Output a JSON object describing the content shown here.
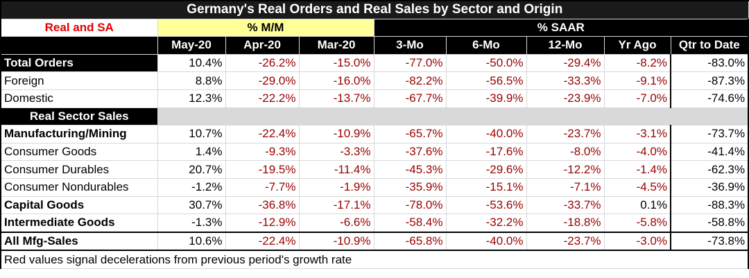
{
  "title": "Germany's Real Orders and Real Sales by Sector and Origin",
  "header": {
    "corner_label": "Real and SA",
    "group_mm": "% M/M",
    "group_saar": "% SAAR",
    "columns": [
      "May-20",
      "Apr-20",
      "Mar-20",
      "3-Mo",
      "6-Mo",
      "12-Mo",
      "Yr Ago",
      "Qtr to Date"
    ]
  },
  "rows": [
    {
      "label": "Total Orders",
      "values": [
        "10.4%",
        "-26.2%",
        "-15.0%",
        "-77.0%",
        "-50.0%",
        "-29.4%",
        "-8.2%",
        "-83.0%"
      ],
      "neg": [
        false,
        true,
        true,
        true,
        true,
        true,
        true,
        false
      ]
    },
    {
      "label": "Foreign",
      "values": [
        "8.8%",
        "-29.0%",
        "-16.0%",
        "-82.2%",
        "-56.5%",
        "-33.3%",
        "-9.1%",
        "-87.3%"
      ],
      "neg": [
        false,
        true,
        true,
        true,
        true,
        true,
        true,
        false
      ]
    },
    {
      "label": "Domestic",
      "values": [
        "12.3%",
        "-22.2%",
        "-13.7%",
        "-67.7%",
        "-39.9%",
        "-23.9%",
        "-7.0%",
        "-74.6%"
      ],
      "neg": [
        false,
        true,
        true,
        true,
        true,
        true,
        true,
        false
      ]
    },
    {
      "label": "Real Sector Sales",
      "values": []
    },
    {
      "label": "Manufacturing/Mining",
      "values": [
        "10.7%",
        "-22.4%",
        "-10.9%",
        "-65.7%",
        "-40.0%",
        "-23.7%",
        "-3.1%",
        "-73.7%"
      ],
      "neg": [
        false,
        true,
        true,
        true,
        true,
        true,
        true,
        false
      ]
    },
    {
      "label": "Consumer Goods",
      "values": [
        "1.4%",
        "-9.3%",
        "-3.3%",
        "-37.6%",
        "-17.6%",
        "-8.0%",
        "-4.0%",
        "-41.4%"
      ],
      "neg": [
        false,
        true,
        true,
        true,
        true,
        true,
        true,
        false
      ]
    },
    {
      "label": "Consumer Durables",
      "values": [
        "20.7%",
        "-19.5%",
        "-11.4%",
        "-45.3%",
        "-29.6%",
        "-12.2%",
        "-1.4%",
        "-62.3%"
      ],
      "neg": [
        false,
        true,
        true,
        true,
        true,
        true,
        true,
        false
      ]
    },
    {
      "label": "Consumer Nondurables",
      "values": [
        "-1.2%",
        "-7.7%",
        "-1.9%",
        "-35.9%",
        "-15.1%",
        "-7.1%",
        "-4.5%",
        "-36.9%"
      ],
      "neg": [
        false,
        true,
        true,
        true,
        true,
        true,
        true,
        false
      ]
    },
    {
      "label": "Capital Goods",
      "values": [
        "30.7%",
        "-36.8%",
        "-17.1%",
        "-78.0%",
        "-53.6%",
        "-33.7%",
        "0.1%",
        "-88.3%"
      ],
      "neg": [
        false,
        true,
        true,
        true,
        true,
        true,
        false,
        false
      ]
    },
    {
      "label": "Intermediate Goods",
      "values": [
        "-1.3%",
        "-12.9%",
        "-6.6%",
        "-58.4%",
        "-32.2%",
        "-18.8%",
        "-5.8%",
        "-58.8%"
      ],
      "neg": [
        false,
        true,
        true,
        true,
        true,
        true,
        true,
        false
      ]
    },
    {
      "label": "All Mfg-Sales",
      "values": [
        "10.6%",
        "-22.4%",
        "-10.9%",
        "-65.8%",
        "-40.0%",
        "-23.7%",
        "-3.0%",
        "-73.8%"
      ],
      "neg": [
        false,
        true,
        true,
        true,
        true,
        true,
        true,
        false
      ]
    }
  ],
  "footnote": "Red values signal decelerations from previous period's growth rate",
  "colors": {
    "negative": "#990000",
    "highlight": "#ffff99",
    "corner_label": "#e00000"
  }
}
